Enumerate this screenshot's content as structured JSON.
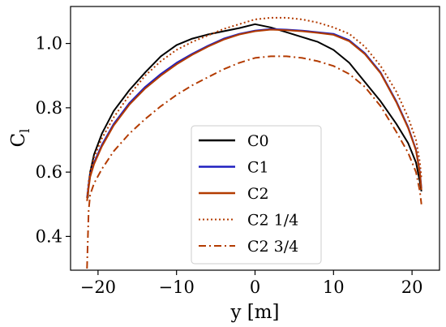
{
  "chart_data": {
    "type": "line",
    "xlabel": "y [m]",
    "ylabel_base": "C",
    "ylabel_sub": "l",
    "xlim": [
      -23.5,
      23.5
    ],
    "ylim": [
      0.295,
      1.115
    ],
    "xticks": [
      -20,
      -10,
      0,
      10,
      20
    ],
    "xtick_labels": [
      "−20",
      "−10",
      "0",
      "10",
      "20"
    ],
    "yticks": [
      0.4,
      0.6,
      0.8,
      1.0
    ],
    "ytick_labels": [
      "0.4",
      "0.6",
      "0.8",
      "1.0"
    ],
    "grid": false,
    "legend_position": "lower-center",
    "series": [
      {
        "name": "C0",
        "color": "#000000",
        "dash": "solid",
        "x": [
          -21.3,
          -21.2,
          -21.0,
          -20.5,
          -19.5,
          -18,
          -16,
          -14,
          -12,
          -10,
          -8,
          -6,
          -4,
          -2,
          0,
          2,
          4,
          6,
          8,
          10,
          12,
          14,
          16,
          18,
          19.5,
          20.5,
          21.0,
          21.2
        ],
        "y": [
          0.52,
          0.56,
          0.6,
          0.655,
          0.72,
          0.79,
          0.855,
          0.91,
          0.96,
          0.995,
          1.015,
          1.028,
          1.038,
          1.048,
          1.06,
          1.05,
          1.035,
          1.02,
          1.005,
          0.98,
          0.94,
          0.88,
          0.82,
          0.75,
          0.69,
          0.63,
          0.57,
          0.54
        ]
      },
      {
        "name": "C1",
        "color": "#1f1fbf",
        "dash": "solid",
        "x": [
          -21.4,
          -21.2,
          -21.0,
          -20.5,
          -19.5,
          -18,
          -16,
          -14,
          -12,
          -10,
          -8,
          -6,
          -4,
          -2,
          0,
          2,
          4,
          6,
          8,
          10,
          12,
          14,
          16,
          18,
          19.5,
          20.5,
          21.0,
          21.2
        ],
        "y": [
          0.52,
          0.56,
          0.59,
          0.63,
          0.685,
          0.75,
          0.815,
          0.865,
          0.905,
          0.94,
          0.968,
          0.993,
          1.015,
          1.03,
          1.04,
          1.045,
          1.043,
          1.04,
          1.035,
          1.03,
          1.01,
          0.97,
          0.91,
          0.82,
          0.74,
          0.67,
          0.6,
          0.55
        ]
      },
      {
        "name": "C2",
        "color": "#b33b00",
        "dash": "solid",
        "x": [
          -21.4,
          -21.2,
          -21.0,
          -20.5,
          -19.5,
          -18,
          -16,
          -14,
          -12,
          -10,
          -8,
          -6,
          -4,
          -2,
          0,
          2,
          4,
          6,
          8,
          10,
          12,
          14,
          16,
          18,
          19.5,
          20.5,
          21.0,
          21.2
        ],
        "y": [
          0.51,
          0.55,
          0.585,
          0.625,
          0.68,
          0.745,
          0.81,
          0.86,
          0.9,
          0.935,
          0.965,
          0.99,
          1.012,
          1.028,
          1.038,
          1.043,
          1.041,
          1.038,
          1.033,
          1.027,
          1.007,
          0.967,
          0.907,
          0.817,
          0.737,
          0.667,
          0.595,
          0.545
        ]
      },
      {
        "name": "C2 1/4",
        "color": "#b33b00",
        "dash": "dotted",
        "x": [
          -21.4,
          -21.2,
          -21.0,
          -20.5,
          -19.5,
          -18,
          -16,
          -14,
          -12,
          -10,
          -8,
          -6,
          -4,
          -2,
          0,
          2,
          4,
          6,
          8,
          10,
          12,
          14,
          16,
          18,
          19.5,
          20.5,
          21.0,
          21.2
        ],
        "y": [
          0.52,
          0.57,
          0.6,
          0.645,
          0.705,
          0.77,
          0.84,
          0.9,
          0.945,
          0.98,
          1.005,
          1.025,
          1.045,
          1.06,
          1.075,
          1.08,
          1.08,
          1.075,
          1.065,
          1.05,
          1.03,
          0.99,
          0.93,
          0.85,
          0.77,
          0.7,
          0.63,
          0.58
        ]
      },
      {
        "name": "C2 3/4",
        "color": "#b33b00",
        "dash": "dashdot",
        "x": [
          -21.4,
          -21.2,
          -21.0,
          -20.5,
          -19.5,
          -18,
          -16,
          -14,
          -12,
          -10,
          -8,
          -6,
          -4,
          -2,
          0,
          2,
          4,
          6,
          8,
          10,
          12,
          14,
          16,
          18,
          19.5,
          20.5,
          21.0,
          21.2
        ],
        "y": [
          0.3,
          0.48,
          0.53,
          0.565,
          0.61,
          0.665,
          0.72,
          0.765,
          0.805,
          0.84,
          0.87,
          0.895,
          0.92,
          0.94,
          0.955,
          0.96,
          0.96,
          0.955,
          0.945,
          0.93,
          0.905,
          0.865,
          0.805,
          0.725,
          0.66,
          0.6,
          0.54,
          0.5
        ]
      }
    ]
  }
}
